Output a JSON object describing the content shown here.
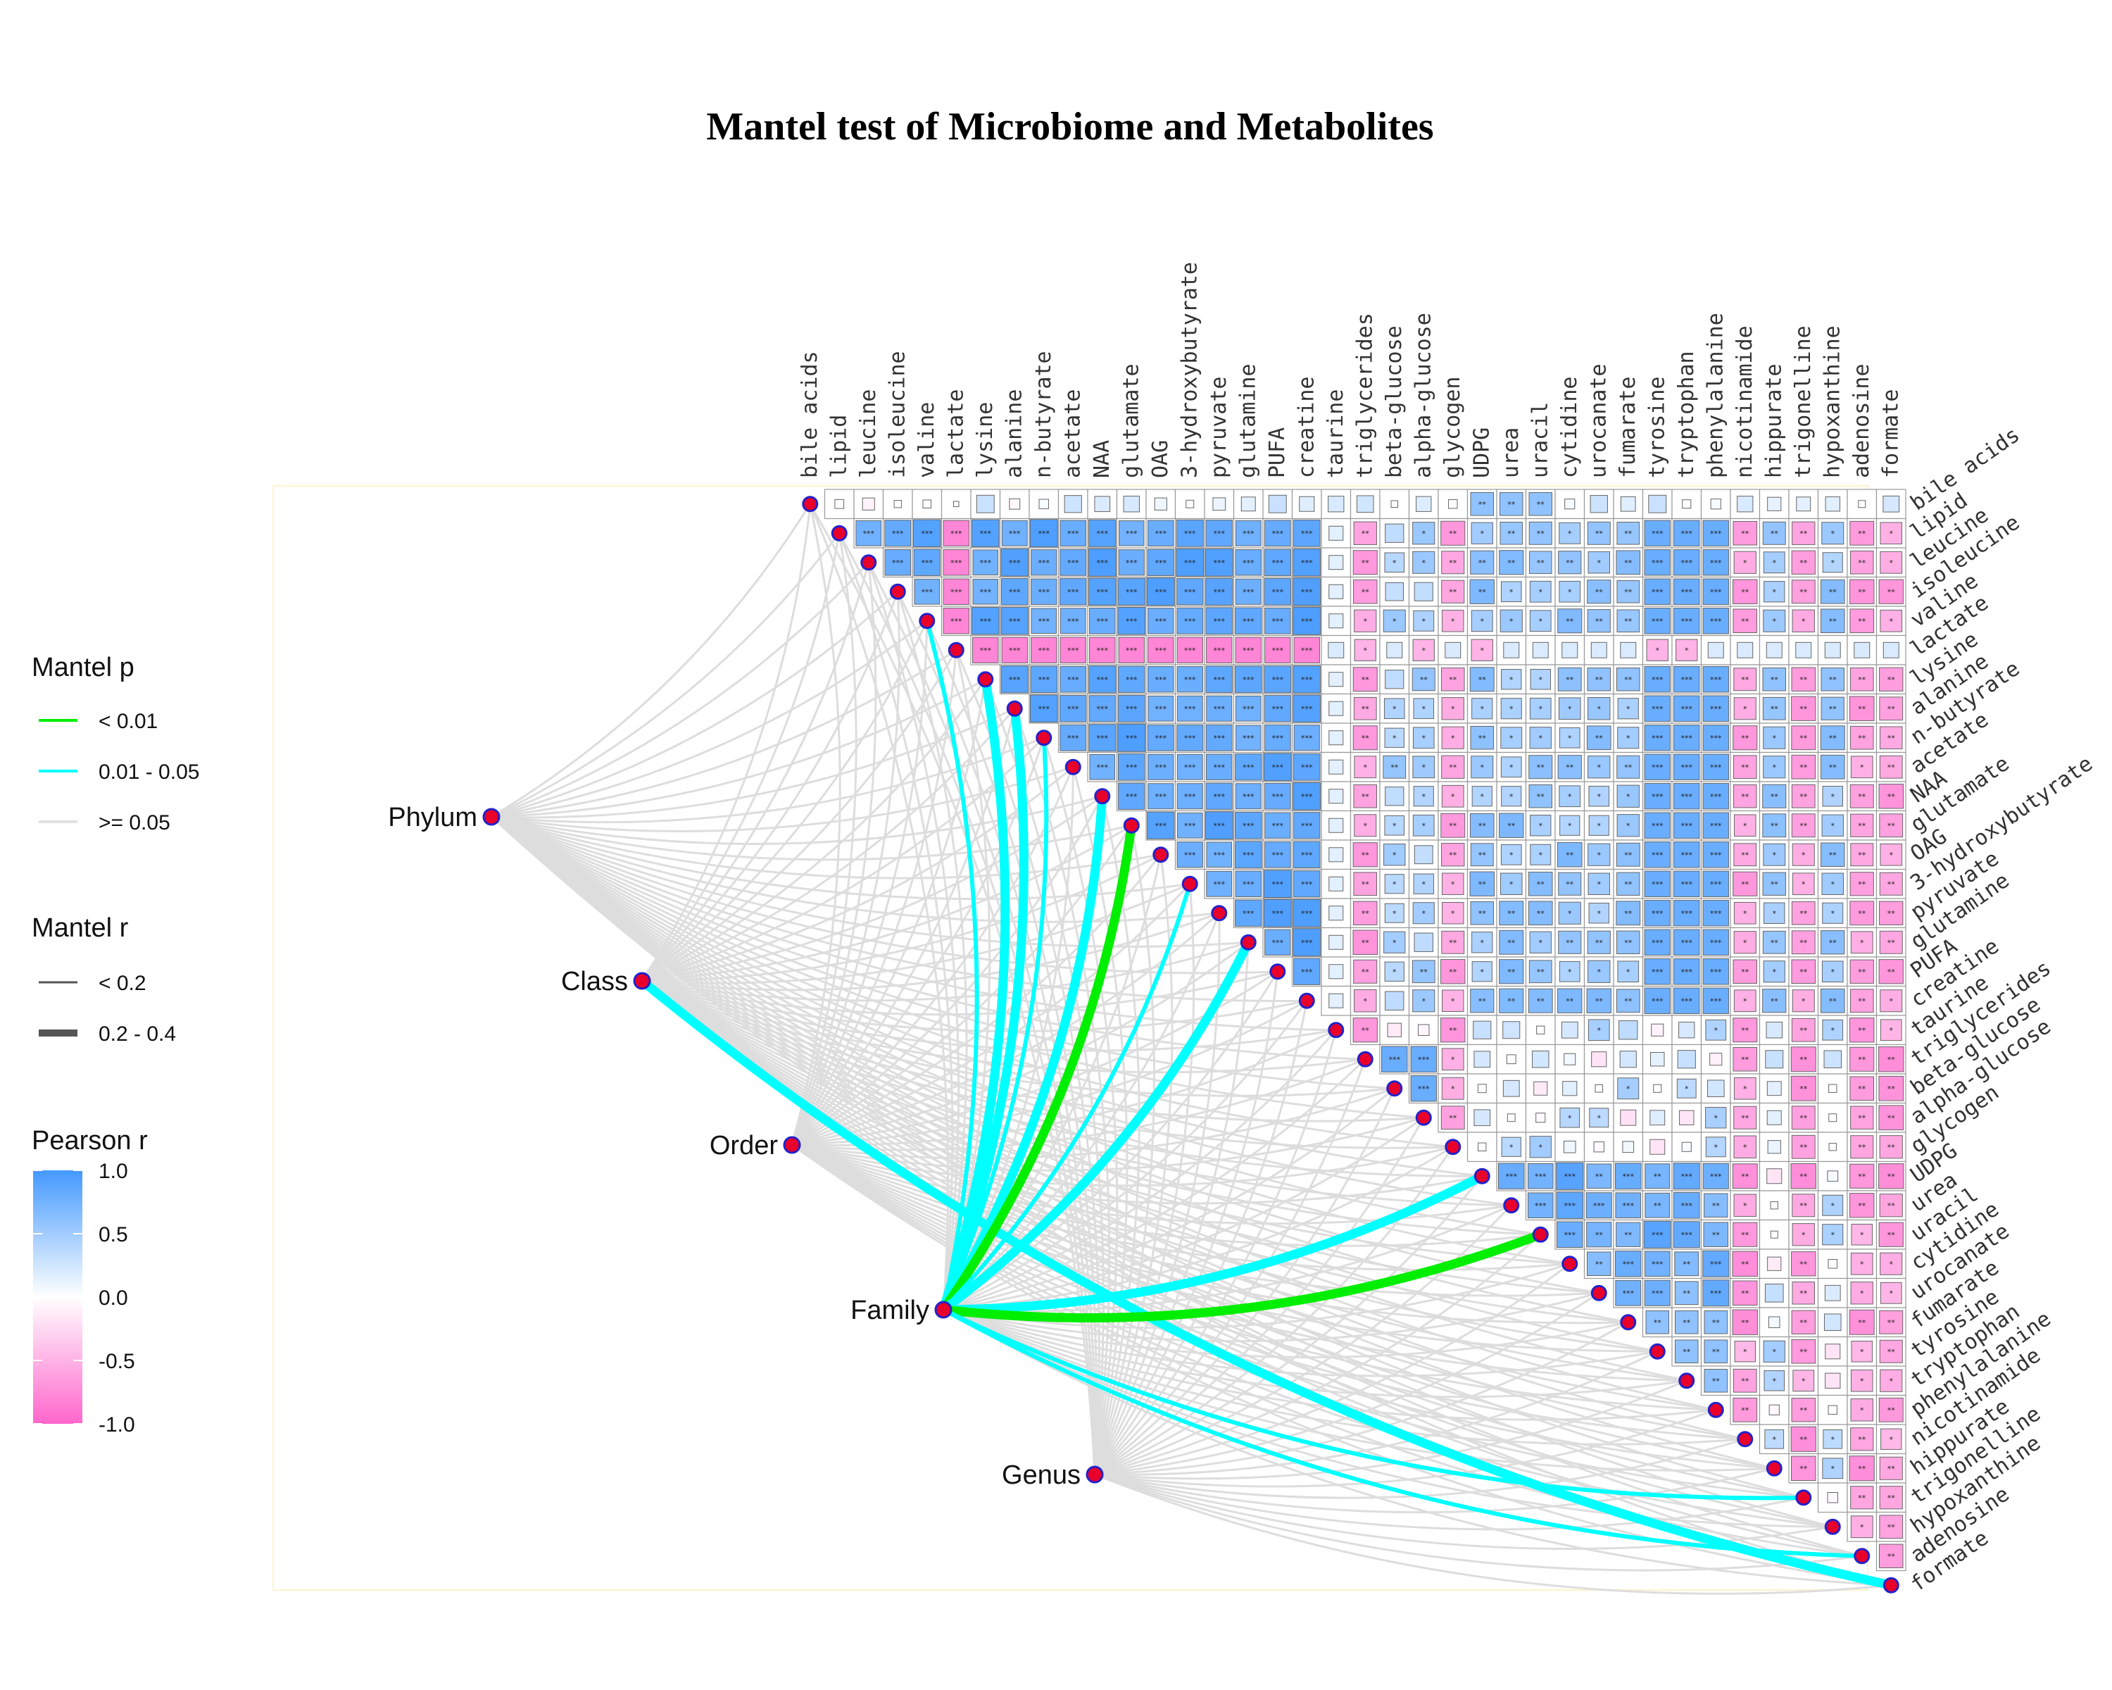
{
  "chart_data": {
    "type": "heatmap",
    "title": "Mantel test of Microbiome and Metabolites",
    "variables": [
      "bile acids",
      "lipid",
      "leucine",
      "isoleucine",
      "valine",
      "lactate",
      "lysine",
      "alanine",
      "n-butyrate",
      "acetate",
      "NAA",
      "glutamate",
      "OAG",
      "3-hydroxybutyrate",
      "pyruvate",
      "glutamine",
      "PUFA",
      "creatine",
      "taurine",
      "triglycerides",
      "beta-glucose",
      "alpha-glucose",
      "glycogen",
      "UDPG",
      "urea",
      "uracil",
      "cytidine",
      "urocanate",
      "fumarate",
      "tyrosine",
      "tryptophan",
      "phenylalanine",
      "nicotinamide",
      "hippurate",
      "trigonelline",
      "hypoxanthine",
      "adenosine",
      "formate"
    ],
    "groups": [
      "Phylum",
      "Class",
      "Order",
      "Family",
      "Genus"
    ],
    "value_range": [
      -1,
      1
    ],
    "correlation_significance_marks": [
      "*",
      "**",
      "***"
    ],
    "mantel_links_highlighted": [
      {
        "group": "Class",
        "variable": "formate",
        "mantel_p": "0.01 - 0.05",
        "mantel_r": "0.2 - 0.4"
      },
      {
        "group": "Family",
        "variable": "glutamate",
        "mantel_p": "< 0.01",
        "mantel_r": "0.2 - 0.4"
      },
      {
        "group": "Family",
        "variable": "uracil",
        "mantel_p": "< 0.01",
        "mantel_r": "0.2 - 0.4"
      },
      {
        "group": "Family",
        "variable": "lysine",
        "mantel_p": "0.01 - 0.05",
        "mantel_r": "0.2 - 0.4"
      },
      {
        "group": "Family",
        "variable": "alanine",
        "mantel_p": "0.01 - 0.05",
        "mantel_r": "0.2 - 0.4"
      },
      {
        "group": "Family",
        "variable": "NAA",
        "mantel_p": "0.01 - 0.05",
        "mantel_r": "0.2 - 0.4"
      },
      {
        "group": "Family",
        "variable": "glutamine",
        "mantel_p": "0.01 - 0.05",
        "mantel_r": "0.2 - 0.4"
      },
      {
        "group": "Family",
        "variable": "UDPG",
        "mantel_p": "0.01 - 0.05",
        "mantel_r": "0.2 - 0.4"
      },
      {
        "group": "Family",
        "variable": "valine",
        "mantel_p": "0.01 - 0.05",
        "mantel_r": "< 0.2"
      },
      {
        "group": "Family",
        "variable": "n-butyrate",
        "mantel_p": "0.01 - 0.05",
        "mantel_r": "< 0.2"
      },
      {
        "group": "Family",
        "variable": "3-hydroxybutyrate",
        "mantel_p": "0.01 - 0.05",
        "mantel_r": "< 0.2"
      },
      {
        "group": "Family",
        "variable": "trigonelline",
        "mantel_p": "0.01 - 0.05",
        "mantel_r": "< 0.2"
      },
      {
        "group": "Family",
        "variable": "adenosine",
        "mantel_p": "0.01 - 0.05",
        "mantel_r": "< 0.2"
      }
    ],
    "legend": {
      "mantel_p": {
        "title": "Mantel p",
        "items": [
          {
            "label": "< 0.01",
            "color": "#00ee00"
          },
          {
            "label": "0.01 - 0.05",
            "color": "#00ffff"
          },
          {
            "label": ">= 0.05",
            "color": "#e0e0e0"
          }
        ]
      },
      "mantel_r": {
        "title": "Mantel r",
        "items": [
          {
            "label": "< 0.2"
          },
          {
            "label": "0.2 - 0.4"
          }
        ]
      },
      "pearson_r": {
        "title": "Pearson r",
        "ticks": [
          "1.0",
          "0.5",
          "0.0",
          "-0.5",
          "-1.0"
        ],
        "colors": {
          "high": "#4499ff",
          "mid": "#ffffff",
          "low": "#ff66cc"
        }
      }
    }
  }
}
